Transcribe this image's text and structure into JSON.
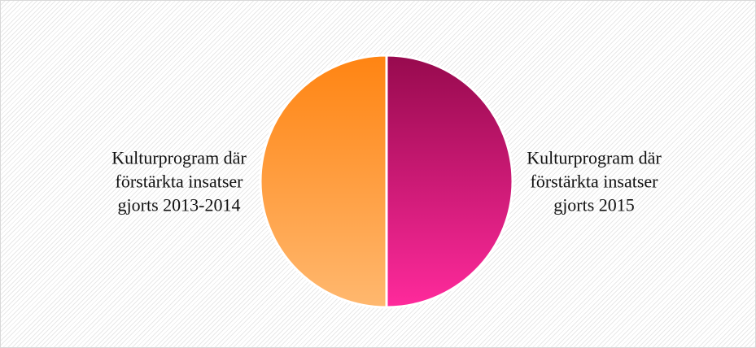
{
  "chart_data": {
    "type": "pie",
    "categories": [
      "Kulturprogram där förstärkta insatser gjorts 2013-2014",
      "Kulturprogram där förstärkta insatser gjorts 2015"
    ],
    "values": [
      50,
      50
    ],
    "colors": [
      [
        "#ff8412",
        "#ffb86f"
      ],
      [
        "#970a4e",
        "#ff2a9c"
      ]
    ]
  }
}
